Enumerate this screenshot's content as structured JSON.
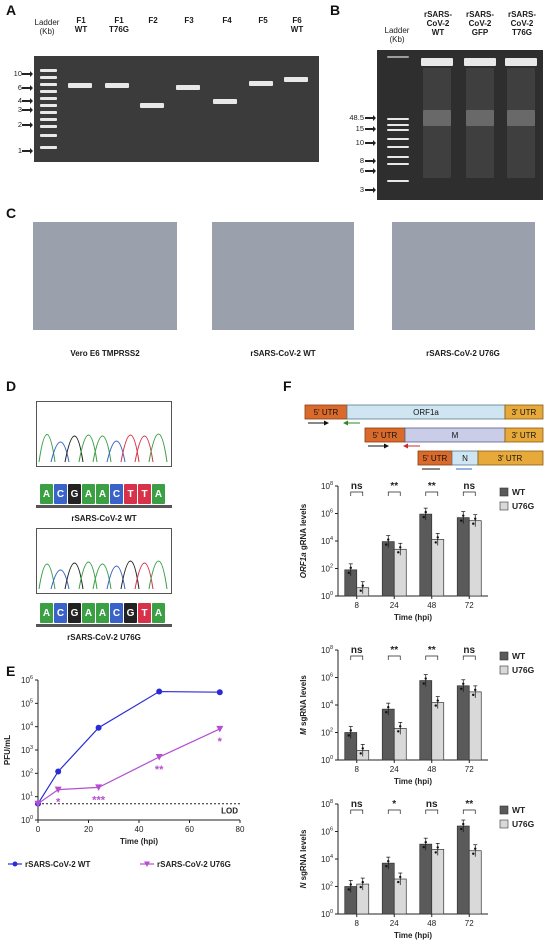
{
  "panels": {
    "A": "A",
    "B": "B",
    "C": "C",
    "D": "D",
    "E": "E",
    "F": "F"
  },
  "panel_a": {
    "ladder_label": "Ladder\n(Kb)",
    "lane_labels": [
      "F1\nWT",
      "F1\nT76G",
      "F2",
      "F3",
      "F4",
      "F5",
      "F6\nWT"
    ],
    "ticks": [
      "10",
      "6",
      "4",
      "3",
      "2",
      "1"
    ]
  },
  "panel_b": {
    "ladder_label": "Ladder\n(Kb)",
    "lane_labels": [
      "rSARS-\nCoV-2\nWT",
      "rSARS-\nCoV-2\nGFP",
      "rSARS-\nCoV-2\nT76G"
    ],
    "ticks": [
      "48.5",
      "15",
      "10",
      "8",
      "6",
      "3"
    ]
  },
  "panel_c": {
    "captions": [
      "Vero E6 TMPRSS2",
      "rSARS-CoV-2 WT",
      "rSARS-CoV-2 U76G"
    ]
  },
  "panel_d": {
    "wt_bases": [
      "A",
      "C",
      "G",
      "A",
      "A",
      "C",
      "T",
      "T",
      "A"
    ],
    "mut_bases": [
      "A",
      "C",
      "G",
      "A",
      "A",
      "C",
      "G",
      "T",
      "A"
    ],
    "wt_caption": "rSARS-CoV-2 WT",
    "mut_caption": "rSARS-CoV-2 U76G",
    "base_colors": {
      "A": "#3aa043",
      "C": "#3a63c9",
      "G": "#222222",
      "T": "#d8324a"
    }
  },
  "panel_f_schematic": {
    "rows": [
      {
        "utr5": "5' UTR",
        "body": "ORF1a",
        "utr3": "3' UTR"
      },
      {
        "utr5": "5' UTR",
        "body": "M",
        "utr3": "3' UTR"
      },
      {
        "utr5": "5' UTR",
        "body": "N",
        "utr3": "3' UTR"
      }
    ]
  },
  "chart_data": [
    {
      "type": "line",
      "panel": "E",
      "xlabel": "Time (hpi)",
      "ylabel": "PFU/mL",
      "xlim": [
        0,
        80
      ],
      "x_ticks": [
        "0",
        "20",
        "40",
        "60",
        "80"
      ],
      "y_scale": "log",
      "ylim": [
        1,
        1000000
      ],
      "y_ticks": [
        "10^0",
        "10^1",
        "10^2",
        "10^3",
        "10^4",
        "10^5",
        "10^6"
      ],
      "x": [
        0,
        8,
        24,
        48,
        72
      ],
      "series": [
        {
          "name": "rSARS-CoV-2 WT",
          "color": "#2b2bd6",
          "marker": "circle",
          "values": [
            5,
            120,
            9000,
            320000,
            300000
          ]
        },
        {
          "name": "rSARS-CoV-2 U76G",
          "color": "#b44fd1",
          "marker": "triangle",
          "values": [
            5,
            20,
            25,
            500,
            8000
          ]
        }
      ],
      "significance": [
        {
          "x": 8,
          "label": "*"
        },
        {
          "x": 24,
          "label": "***"
        },
        {
          "x": 48,
          "label": "**"
        },
        {
          "x": 72,
          "label": "*"
        }
      ],
      "annotation": "LOD",
      "lod_value": 5
    },
    {
      "type": "bar",
      "panel": "F-ORF1a",
      "italic_prefix": "ORF1a",
      "ylabel_rest": " gRNA levels",
      "xlabel": "Time (hpi)",
      "categories": [
        "8",
        "24",
        "48",
        "72"
      ],
      "y_scale": "log",
      "ylim": [
        1,
        100000000
      ],
      "y_ticks": [
        "10^0",
        "10^2",
        "10^4",
        "10^6",
        "10^8"
      ],
      "series": [
        {
          "name": "WT",
          "color": "#5a5a5a",
          "values": [
            80,
            9000,
            900000,
            500000
          ]
        },
        {
          "name": "U76G",
          "color": "#d9d9d9",
          "values": [
            4,
            2500,
            13000,
            300000
          ]
        }
      ],
      "significance": [
        "ns",
        "**",
        "**",
        "ns"
      ]
    },
    {
      "type": "bar",
      "panel": "F-M",
      "italic_prefix": "M",
      "ylabel_rest": " sgRNA levels",
      "xlabel": "Time (hpi)",
      "categories": [
        "8",
        "24",
        "48",
        "72"
      ],
      "y_scale": "log",
      "ylim": [
        1,
        100000000
      ],
      "y_ticks": [
        "10^0",
        "10^2",
        "10^4",
        "10^6",
        "10^8"
      ],
      "series": [
        {
          "name": "WT",
          "color": "#5a5a5a",
          "values": [
            100,
            5000,
            600000,
            250000
          ]
        },
        {
          "name": "U76G",
          "color": "#d9d9d9",
          "values": [
            5,
            200,
            15000,
            90000
          ]
        }
      ],
      "significance": [
        "ns",
        "**",
        "**",
        "ns"
      ]
    },
    {
      "type": "bar",
      "panel": "F-N",
      "italic_prefix": "N",
      "ylabel_rest": " sgRNA levels",
      "xlabel": "Time (hpi)",
      "categories": [
        "8",
        "24",
        "48",
        "72"
      ],
      "y_scale": "log",
      "ylim": [
        1,
        100000000
      ],
      "y_ticks": [
        "10^0",
        "10^2",
        "10^4",
        "10^6",
        "10^8"
      ],
      "series": [
        {
          "name": "WT",
          "color": "#5a5a5a",
          "values": [
            100,
            5000,
            120000,
            2500000
          ]
        },
        {
          "name": "U76G",
          "color": "#d9d9d9",
          "values": [
            150,
            350,
            50000,
            40000
          ]
        }
      ],
      "significance": [
        "ns",
        "*",
        "ns",
        "**"
      ]
    }
  ]
}
